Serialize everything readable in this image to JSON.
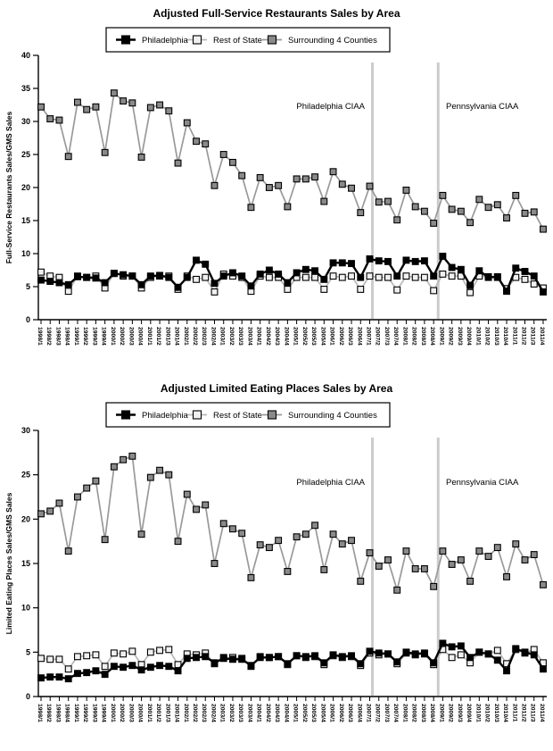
{
  "chart_data": [
    {
      "type": "line",
      "title": "Adjusted Full-Service Restaurants Sales by Area",
      "ylabel": "Full-Service Restaurants Sales/GMS Sales",
      "xlabel": "",
      "ylim": [
        0,
        40
      ],
      "y_tick_step": 5,
      "grid": false,
      "legend_position": "top",
      "categories": [
        "1998/1",
        "1998/2",
        "1998/3",
        "1998/4",
        "1999/1",
        "1999/2",
        "1999/3",
        "1999/4",
        "2000/1",
        "2000/2",
        "2000/3",
        "2000/4",
        "2001/1",
        "2001/2",
        "2001/3",
        "2001/4",
        "2002/1",
        "2002/2",
        "2002/3",
        "2002/4",
        "2003/1",
        "2003/2",
        "2003/3",
        "2003/4",
        "2004/1",
        "2004/2",
        "2004/3",
        "2004/4",
        "2005/1",
        "2005/2",
        "2005/3",
        "2005/4",
        "2006/1",
        "2006/2",
        "2006/3",
        "2006/4",
        "2007/1",
        "2007/2",
        "2007/3",
        "2007/4",
        "2008/1",
        "2008/2",
        "2008/3",
        "2008/4",
        "2009/1",
        "2009/2",
        "2009/3",
        "2009/4",
        "2010/1",
        "2010/2",
        "2010/3",
        "2010/4",
        "2011/1",
        "2011/2",
        "2011/3",
        "2011/4"
      ],
      "series": [
        {
          "name": "Philadelphia",
          "marker": "filled-square",
          "line_color": "#000000",
          "marker_fill": "#000000",
          "marker_stroke": "#000000",
          "values": [
            6.0,
            5.8,
            5.6,
            5.3,
            6.5,
            6.4,
            6.3,
            5.6,
            7.0,
            6.8,
            6.6,
            5.3,
            6.6,
            6.7,
            6.4,
            4.9,
            6.4,
            9.0,
            8.4,
            5.5,
            6.6,
            7.1,
            6.6,
            5.1,
            6.9,
            7.5,
            6.9,
            5.6,
            7.1,
            7.6,
            7.4,
            6.1,
            8.6,
            8.6,
            8.5,
            6.4,
            9.2,
            8.9,
            8.8,
            6.6,
            9.0,
            8.8,
            8.9,
            6.6,
            9.6,
            7.9,
            7.6,
            5.2,
            7.4,
            6.4,
            6.5,
            4.3,
            7.8,
            7.3,
            6.6,
            4.2
          ]
        },
        {
          "name": "Rest of State",
          "marker": "open-square",
          "line_color": "#b8b8b8",
          "marker_fill": "#f0f0f0",
          "marker_stroke": "#000000",
          "values": [
            7.2,
            6.6,
            6.4,
            4.3,
            6.6,
            6.4,
            6.6,
            4.8,
            7.0,
            6.6,
            6.6,
            4.8,
            6.4,
            6.6,
            6.6,
            4.6,
            6.6,
            6.1,
            6.4,
            4.2,
            6.9,
            6.6,
            6.4,
            4.3,
            6.6,
            6.4,
            6.4,
            4.6,
            6.4,
            6.4,
            6.4,
            4.6,
            6.6,
            6.4,
            6.6,
            4.6,
            6.6,
            6.4,
            6.4,
            4.5,
            6.6,
            6.4,
            6.4,
            4.4,
            6.9,
            6.6,
            6.6,
            4.1,
            6.6,
            6.5,
            6.4,
            4.7,
            6.4,
            6.1,
            5.4,
            4.8
          ]
        },
        {
          "name": "Surrounding 4 Counties",
          "marker": "gray-square",
          "line_color": "#999999",
          "marker_fill": "#8a8a8a",
          "marker_stroke": "#000000",
          "values": [
            32.2,
            30.4,
            30.2,
            24.7,
            32.9,
            31.8,
            32.2,
            25.3,
            34.3,
            33.1,
            32.8,
            24.6,
            32.1,
            32.5,
            31.6,
            23.7,
            29.8,
            27.0,
            26.6,
            20.3,
            25.0,
            23.8,
            21.8,
            17.0,
            21.5,
            20.0,
            20.3,
            17.1,
            21.3,
            21.3,
            21.6,
            17.9,
            22.4,
            20.5,
            19.9,
            16.2,
            20.2,
            17.8,
            17.9,
            15.1,
            19.6,
            17.1,
            16.4,
            14.6,
            18.8,
            16.7,
            16.4,
            14.7,
            18.2,
            17.0,
            17.4,
            15.4,
            18.8,
            16.1,
            16.3,
            13.7
          ]
        }
      ],
      "annotations": [
        {
          "label": "Philadelphia CIAA",
          "index": 36.3,
          "side": "left"
        },
        {
          "label": "Pennsylvania CIAA",
          "index": 43.5,
          "side": "right"
        }
      ],
      "reference_line_color": "#cccccc"
    },
    {
      "type": "line",
      "title": "Adjusted Limited Eating Places Sales by Area",
      "ylabel": "Limited Eating Places Sales/GMS Sales",
      "xlabel": "",
      "ylim": [
        0,
        30
      ],
      "y_tick_step": 5,
      "grid": false,
      "legend_position": "top",
      "categories": [
        "1998/1",
        "1998/2",
        "1998/3",
        "1998/4",
        "1999/1",
        "1999/2",
        "1999/3",
        "1999/4",
        "2000/1",
        "2000/2",
        "2000/3",
        "2000/4",
        "2001/1",
        "2001/2",
        "2001/3",
        "2001/4",
        "2002/1",
        "2002/2",
        "2002/3",
        "2002/4",
        "2003/1",
        "2003/2",
        "2003/3",
        "2003/4",
        "2004/1",
        "2004/2",
        "2004/3",
        "2004/4",
        "2005/1",
        "2005/2",
        "2005/3",
        "2005/4",
        "2006/1",
        "2006/2",
        "2006/3",
        "2006/4",
        "2007/1",
        "2007/2",
        "2007/3",
        "2007/4",
        "2008/1",
        "2008/2",
        "2008/3",
        "2008/4",
        "2009/1",
        "2009/2",
        "2009/3",
        "2009/4",
        "2010/1",
        "2010/2",
        "2010/3",
        "2010/4",
        "2011/1",
        "2011/2",
        "2011/3",
        "2011/4"
      ],
      "series": [
        {
          "name": "Philadelphia",
          "marker": "filled-square",
          "line_color": "#000000",
          "marker_fill": "#000000",
          "marker_stroke": "#000000",
          "values": [
            2.1,
            2.2,
            2.2,
            2.0,
            2.6,
            2.7,
            2.9,
            2.5,
            3.4,
            3.3,
            3.5,
            3.0,
            3.3,
            3.5,
            3.4,
            2.9,
            4.3,
            4.4,
            4.5,
            3.8,
            4.3,
            4.2,
            4.2,
            3.5,
            4.4,
            4.4,
            4.5,
            3.7,
            4.6,
            4.5,
            4.6,
            3.8,
            4.7,
            4.5,
            4.6,
            3.7,
            5.1,
            4.9,
            4.8,
            3.9,
            5.0,
            4.8,
            4.9,
            3.8,
            6.0,
            5.6,
            5.7,
            4.4,
            5.0,
            4.8,
            4.1,
            2.9,
            5.4,
            5.0,
            4.7,
            3.1
          ]
        },
        {
          "name": "Rest of State",
          "marker": "open-square",
          "line_color": "#b8b8b8",
          "marker_fill": "#f0f0f0",
          "marker_stroke": "#000000",
          "values": [
            4.3,
            4.2,
            4.2,
            3.1,
            4.5,
            4.6,
            4.7,
            3.4,
            4.9,
            4.8,
            5.1,
            3.6,
            5.0,
            5.2,
            5.3,
            3.6,
            4.8,
            4.7,
            4.9,
            3.7,
            4.4,
            4.4,
            4.3,
            3.4,
            4.5,
            4.4,
            4.5,
            3.6,
            4.6,
            4.4,
            4.5,
            3.6,
            4.6,
            4.4,
            4.5,
            3.5,
            4.9,
            4.7,
            4.8,
            3.7,
            4.9,
            4.7,
            4.8,
            3.6,
            5.3,
            4.4,
            4.7,
            3.8,
            5.0,
            4.8,
            5.2,
            3.7,
            5.3,
            4.9,
            5.3,
            3.8
          ]
        },
        {
          "name": "Surrounding 4 Counties",
          "marker": "gray-square",
          "line_color": "#999999",
          "marker_fill": "#8a8a8a",
          "marker_stroke": "#000000",
          "values": [
            20.6,
            20.9,
            21.8,
            16.4,
            22.5,
            23.5,
            24.3,
            17.7,
            25.9,
            26.7,
            27.1,
            18.3,
            24.7,
            25.5,
            25.0,
            17.5,
            22.8,
            21.1,
            21.6,
            15.0,
            19.5,
            18.9,
            18.4,
            13.4,
            17.1,
            16.8,
            17.6,
            14.1,
            18.0,
            18.3,
            19.3,
            14.3,
            18.3,
            17.2,
            17.6,
            13.0,
            16.2,
            14.7,
            15.4,
            12.0,
            16.4,
            14.4,
            14.4,
            12.4,
            16.4,
            14.9,
            15.4,
            13.0,
            16.4,
            15.8,
            16.8,
            13.5,
            17.2,
            15.4,
            16.0,
            12.6
          ]
        }
      ],
      "annotations": [
        {
          "label": "Philadelphia CIAA",
          "index": 36.3,
          "side": "left"
        },
        {
          "label": "Pennsylvania CIAA",
          "index": 43.5,
          "side": "right"
        }
      ],
      "reference_line_color": "#cccccc"
    }
  ]
}
